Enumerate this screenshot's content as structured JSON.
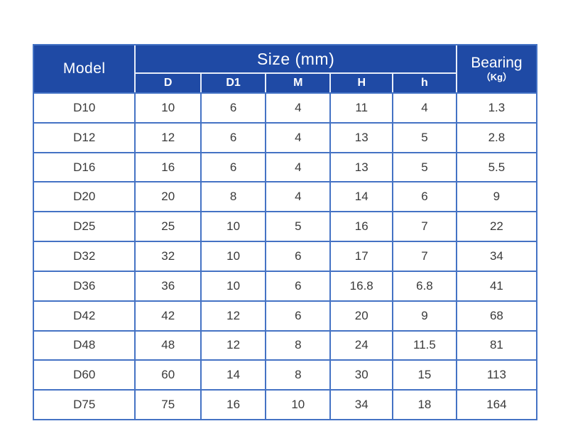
{
  "header": {
    "model_label": "Model",
    "size_group_label": "Size (mm)",
    "bearing_label": "Bearing",
    "bearing_unit": "（Kg）",
    "size_columns": [
      "D",
      "D1",
      "M",
      "H",
      "h"
    ]
  },
  "chart_data": {
    "type": "table",
    "title": "",
    "columns": [
      "Model",
      "D",
      "D1",
      "M",
      "H",
      "h",
      "Bearing（Kg）"
    ],
    "column_groups": [
      {
        "label": "Model",
        "span": 1
      },
      {
        "label": "Size (mm)",
        "span": 5
      },
      {
        "label": "Bearing（Kg）",
        "span": 1
      }
    ],
    "rows": [
      [
        "D10",
        "10",
        "6",
        "4",
        "11",
        "4",
        "1.3"
      ],
      [
        "D12",
        "12",
        "6",
        "4",
        "13",
        "5",
        "2.8"
      ],
      [
        "D16",
        "16",
        "6",
        "4",
        "13",
        "5",
        "5.5"
      ],
      [
        "D20",
        "20",
        "8",
        "4",
        "14",
        "6",
        "9"
      ],
      [
        "D25",
        "25",
        "10",
        "5",
        "16",
        "7",
        "22"
      ],
      [
        "D32",
        "32",
        "10",
        "6",
        "17",
        "7",
        "34"
      ],
      [
        "D36",
        "36",
        "10",
        "6",
        "16.8",
        "6.8",
        "41"
      ],
      [
        "D42",
        "42",
        "12",
        "6",
        "20",
        "9",
        "68"
      ],
      [
        "D48",
        "48",
        "12",
        "8",
        "24",
        "11.5",
        "81"
      ],
      [
        "D60",
        "60",
        "14",
        "8",
        "30",
        "15",
        "113"
      ],
      [
        "D75",
        "75",
        "16",
        "10",
        "34",
        "18",
        "164"
      ]
    ]
  },
  "colors": {
    "page_bg": "#ffffff",
    "header_bg": "#1f4aa5",
    "header_text": "#ffffff",
    "header_separator": "#e8eef9",
    "grid_border": "#4472c4",
    "cell_text": "#3a3a3a"
  }
}
